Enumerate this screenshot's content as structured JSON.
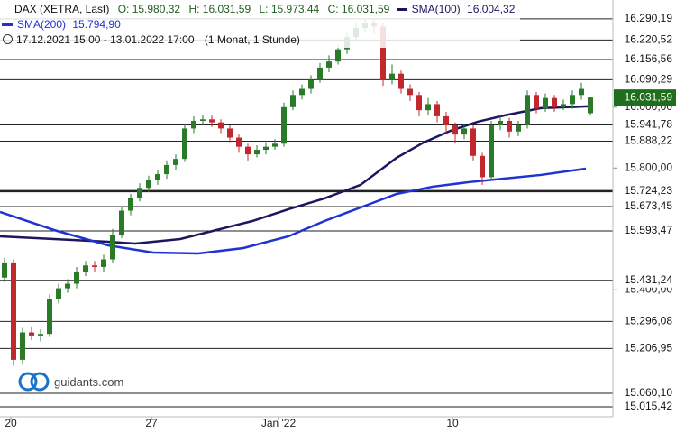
{
  "chart_data": {
    "type": "candlestick",
    "title": "DAX (XETRA, Last)",
    "ohlc_labels": [
      "O: 15.980,32",
      "H: 16.031,59",
      "L: 15.973,44",
      "C: 16.031,59"
    ],
    "period": "17.12.2021 15:00 - 13.01.2022 17:00",
    "interval": "(1 Monat, 1 Stunde)",
    "logo": "guidants.com",
    "up_color": "#2a7a2a",
    "down_color": "#c0282d",
    "xlim": [
      -0.5,
      67.5
    ],
    "ylim": [
      14983,
      16352
    ],
    "xticks": [
      {
        "value": 0.7,
        "label": "20"
      },
      {
        "value": 16.3,
        "label": "27"
      },
      {
        "value": 30.4,
        "label": "Jan '22"
      },
      {
        "value": 49.7,
        "label": "10"
      }
    ],
    "yticks": [
      {
        "value": 15400,
        "label": "15.400,00"
      },
      {
        "value": 15800,
        "label": "15.800,00"
      },
      {
        "value": 16000,
        "label": "16.000,00"
      }
    ],
    "levels": [
      {
        "value": 16290.19,
        "label": "16.290,19"
      },
      {
        "value": 16220.52,
        "label": "16.220,52"
      },
      {
        "value": 16156.56,
        "label": "16.156,56"
      },
      {
        "value": 16090.29,
        "label": "16.090,29"
      },
      {
        "value": 15941.78,
        "label": "15.941,78"
      },
      {
        "value": 15888.22,
        "label": "15.888,22"
      },
      {
        "value": 15724.23,
        "label": "15.724,23"
      },
      {
        "value": 15673.45,
        "label": "15.673,45"
      },
      {
        "value": 15593.47,
        "label": "15.593,47"
      },
      {
        "value": 15431.24,
        "label": "15.431,24"
      },
      {
        "value": 15296.08,
        "label": "15.296,08"
      },
      {
        "value": 15206.95,
        "label": "15.206,95"
      },
      {
        "value": 15060.1,
        "label": "15.060,10"
      },
      {
        "value": 15015.42,
        "label": "15.015,42"
      }
    ],
    "last_price": {
      "value": 16031.59,
      "label": "16.031,59",
      "color": "#1e6e1e"
    },
    "candles": {
      "open": [
        15440,
        15490,
        15170,
        15260,
        15250,
        15255,
        15370,
        15405,
        15420,
        15460,
        15480,
        15475,
        15500,
        15580,
        15660,
        15700,
        15735,
        15760,
        15780,
        15810,
        15830,
        15930,
        15955,
        15960,
        15950,
        15930,
        15900,
        15870,
        15845,
        15860,
        15870,
        15880,
        16000,
        16040,
        16060,
        16090,
        16130,
        16150,
        16190,
        16230,
        16260,
        16275,
        16265,
        16090,
        16110,
        16060,
        16040,
        15990,
        16010,
        15970,
        15940,
        15910,
        15930,
        15840,
        15770,
        15940,
        15955,
        15920,
        15940,
        16040,
        15995,
        16030,
        16000,
        16010,
        16040,
        15980.32
      ],
      "high": [
        15505,
        15500,
        15275,
        15280,
        15270,
        15385,
        15420,
        15435,
        15475,
        15495,
        15495,
        15515,
        15600,
        15675,
        15715,
        15750,
        15775,
        15795,
        15825,
        15845,
        15945,
        15970,
        15975,
        15972,
        15960,
        15940,
        15910,
        15880,
        15875,
        15885,
        15895,
        16015,
        16055,
        16075,
        16105,
        16145,
        16170,
        16205,
        16245,
        16280,
        16290,
        16290,
        16275,
        16140,
        16120,
        16075,
        16050,
        16030,
        16020,
        15985,
        15950,
        15945,
        15940,
        15850,
        15955,
        15975,
        15965,
        15955,
        16055,
        16050,
        16045,
        16040,
        16025,
        16055,
        16080,
        16031.59
      ],
      "low": [
        15425,
        15150,
        15155,
        15235,
        15230,
        15245,
        15355,
        15390,
        15405,
        15445,
        15460,
        15460,
        15490,
        15570,
        15645,
        15690,
        15720,
        15745,
        15765,
        15795,
        15820,
        15915,
        15940,
        15935,
        15915,
        15885,
        15850,
        15825,
        15835,
        15845,
        15860,
        15870,
        15990,
        16025,
        16045,
        16080,
        16115,
        16140,
        16175,
        16220,
        16245,
        16240,
        16070,
        16075,
        16045,
        16020,
        15970,
        15975,
        15950,
        15915,
        15880,
        15895,
        15825,
        15745,
        15760,
        15925,
        15900,
        15905,
        15930,
        15980,
        15985,
        15985,
        15990,
        15995,
        16025,
        15973.44
      ],
      "close": [
        15490,
        15170,
        15260,
        15250,
        15255,
        15370,
        15405,
        15420,
        15460,
        15480,
        15475,
        15500,
        15580,
        15660,
        15700,
        15735,
        15760,
        15780,
        15810,
        15830,
        15930,
        15955,
        15960,
        15950,
        15930,
        15900,
        15870,
        15845,
        15860,
        15870,
        15880,
        16000,
        16040,
        16060,
        16090,
        16130,
        16150,
        16190,
        16230,
        16260,
        16275,
        16265,
        16090,
        16110,
        16060,
        16040,
        15990,
        16010,
        15970,
        15940,
        15910,
        15930,
        15840,
        15770,
        15940,
        15955,
        15920,
        15940,
        16040,
        15995,
        16030,
        16000,
        16010,
        16040,
        16060,
        16031.59
      ]
    },
    "series": [
      {
        "name": "SMA(100)",
        "value_label": "16.004,32",
        "color": "#1c1660",
        "x": [
          -0.5,
          5.5,
          11.5,
          14.5,
          19.5,
          23.5,
          27.5,
          31.5,
          35.5,
          39.5,
          43.5,
          46.5,
          49.5,
          52.5,
          55.5,
          59.5,
          64.7
        ],
        "values": [
          15575.7,
          15566.8,
          15557.9,
          15552,
          15566.8,
          15596.4,
          15626,
          15664.6,
          15700.2,
          15744.7,
          15833.6,
          15884,
          15922.6,
          15952.2,
          15973,
          15996.7,
          16002.6
        ]
      },
      {
        "name": "SMA(200)",
        "value_label": "15.794,90",
        "color": "#1f33d1",
        "x": [
          -0.5,
          5.5,
          11.5,
          16.5,
          21.5,
          26.5,
          31.5,
          35.5,
          39.5,
          43.5,
          47.5,
          51.5,
          55.5,
          59.5,
          64.5
        ],
        "values": [
          15655.7,
          15596.4,
          15546,
          15522.3,
          15519.3,
          15537.1,
          15575.7,
          15626,
          15670.5,
          15715,
          15738.8,
          15753.6,
          15765.5,
          15777.3,
          15798
        ]
      }
    ]
  }
}
